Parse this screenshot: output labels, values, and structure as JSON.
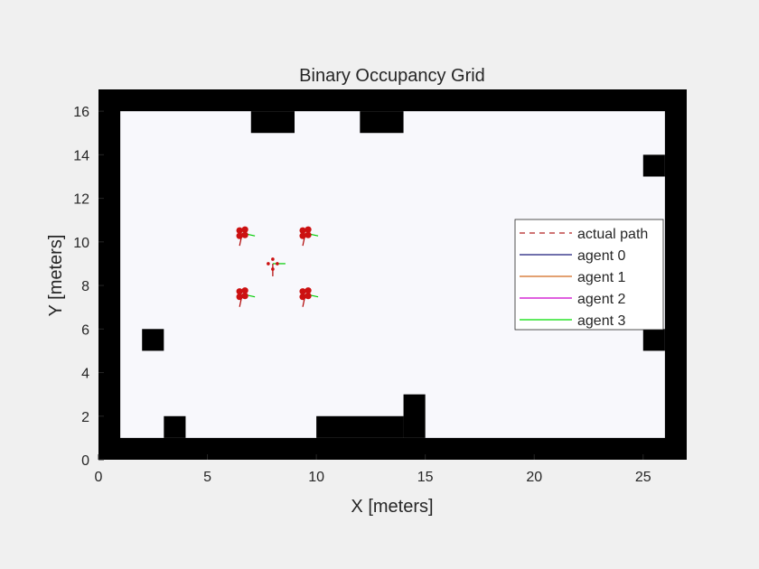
{
  "colors": {
    "figure_bg": "#f0f0f0",
    "free_space": "#f8f8fc",
    "obstacle": "#000000",
    "agent_marker": "#cc1111",
    "heading_green": "#00cc00",
    "heading_red": "#b00000"
  },
  "chart_data": {
    "type": "occupancy-grid",
    "title": "Binary Occupancy Grid",
    "xlabel": "X [meters]",
    "ylabel": "Y [meters]",
    "xlim": [
      0,
      27
    ],
    "ylim": [
      0,
      17
    ],
    "xticks": [
      0,
      5,
      10,
      15,
      20,
      25
    ],
    "yticks": [
      0,
      2,
      4,
      6,
      8,
      10,
      12,
      14,
      16
    ],
    "grid": false,
    "cell_size": 1,
    "obstacles": [
      {
        "x": 0,
        "y": 0,
        "w": 1,
        "h": 17
      },
      {
        "x": 26,
        "y": 0,
        "w": 1,
        "h": 17
      },
      {
        "x": 0,
        "y": 16,
        "w": 27,
        "h": 1
      },
      {
        "x": 0,
        "y": 0,
        "w": 27,
        "h": 1
      },
      {
        "x": 7,
        "y": 15,
        "w": 2,
        "h": 1
      },
      {
        "x": 12,
        "y": 15,
        "w": 2,
        "h": 1
      },
      {
        "x": 25,
        "y": 13,
        "w": 1,
        "h": 1
      },
      {
        "x": 25,
        "y": 5,
        "w": 1,
        "h": 1
      },
      {
        "x": 2,
        "y": 5,
        "w": 1,
        "h": 1
      },
      {
        "x": 3,
        "y": 1,
        "w": 1,
        "h": 1
      },
      {
        "x": 10,
        "y": 1,
        "w": 4,
        "h": 1
      },
      {
        "x": 14,
        "y": 1,
        "w": 1,
        "h": 2
      }
    ],
    "agents": [
      {
        "name": "agent 0",
        "x": 6.6,
        "y": 10.4
      },
      {
        "name": "agent 1",
        "x": 9.5,
        "y": 10.4
      },
      {
        "name": "agent 2",
        "x": 6.6,
        "y": 7.6
      },
      {
        "name": "agent 3",
        "x": 9.5,
        "y": 7.6
      }
    ],
    "center": {
      "x": 8.0,
      "y": 9.0
    },
    "legend": {
      "placement": "right",
      "entries": [
        {
          "label": "actual path",
          "color": "#b22222",
          "style": "dashed"
        },
        {
          "label": "agent 0",
          "color": "#1a1a7a",
          "style": "solid"
        },
        {
          "label": "agent 1",
          "color": "#d2691e",
          "style": "solid"
        },
        {
          "label": "agent 2",
          "color": "#cc00cc",
          "style": "solid"
        },
        {
          "label": "agent 3",
          "color": "#00dd00",
          "style": "solid"
        }
      ]
    }
  }
}
